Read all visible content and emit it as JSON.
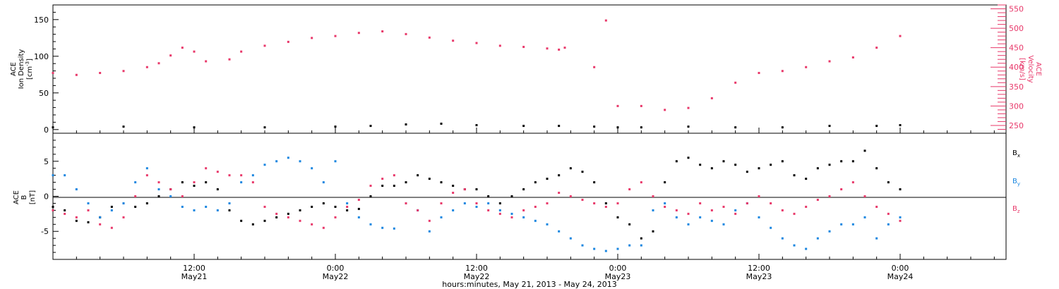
{
  "colors": {
    "black": "#000000",
    "blue": "#1a86e0",
    "pink": "#e8386a"
  },
  "x_axis": {
    "label": "hours:minutes, May 21, 2013 - May 24, 2013",
    "range_hours": [
      0,
      81
    ],
    "ticks": [
      {
        "hours": 12,
        "time": "12:00",
        "date": "May21"
      },
      {
        "hours": 24,
        "time": "0:00",
        "date": "May22"
      },
      {
        "hours": 36,
        "time": "12:00",
        "date": "May22"
      },
      {
        "hours": 48,
        "time": "0:00",
        "date": "May23"
      },
      {
        "hours": 60,
        "time": "12:00",
        "date": "May23"
      },
      {
        "hours": 72,
        "time": "0:00",
        "date": "May24"
      }
    ]
  },
  "chart_data": [
    {
      "type": "scatter",
      "panel": "top",
      "y_left": {
        "label_lines": [
          "ACE",
          "Ion Density"
        ],
        "unit_base": "[cm",
        "unit_exp": "-3",
        "unit_end": "]",
        "range": [
          -5,
          170
        ],
        "ticks": [
          0,
          50,
          100,
          150
        ]
      },
      "y_right": {
        "label_lines": [
          "ACE",
          "Velocity"
        ],
        "unit": "[km/s]",
        "range": [
          230,
          560
        ],
        "ticks": [
          250,
          300,
          350,
          400,
          450,
          500,
          550
        ]
      },
      "series": [
        {
          "color": "#000000",
          "axis": "left",
          "x": [
            0,
            6,
            12,
            18,
            24,
            27,
            30,
            33,
            36,
            40,
            43,
            46,
            48,
            50,
            54,
            58,
            62,
            66,
            70,
            72
          ],
          "y": [
            3,
            4,
            3,
            3,
            4,
            5,
            7,
            8,
            6,
            5,
            5,
            4,
            3,
            3,
            4,
            3,
            3,
            5,
            5,
            6
          ]
        },
        {
          "color": "#e8386a",
          "axis": "right",
          "x": [
            0,
            2,
            4,
            6,
            8,
            9,
            10,
            11,
            12,
            13,
            15,
            16,
            18,
            20,
            22,
            24,
            26,
            28,
            30,
            32,
            34,
            36,
            38,
            40,
            42,
            43,
            43.5,
            46,
            47,
            48,
            50,
            52,
            54,
            56,
            58,
            60,
            62,
            64,
            66,
            68,
            70,
            72
          ],
          "y": [
            385,
            380,
            385,
            390,
            400,
            410,
            430,
            450,
            440,
            415,
            420,
            440,
            455,
            465,
            475,
            480,
            488,
            492,
            485,
            476,
            468,
            462,
            455,
            452,
            448,
            445,
            450,
            400,
            520,
            300,
            300,
            290,
            295,
            320,
            360,
            385,
            390,
            400,
            415,
            425,
            450,
            480
          ]
        }
      ]
    },
    {
      "type": "scatter",
      "panel": "bottom",
      "y_left": {
        "label_lines": [
          "ACE",
          "B"
        ],
        "unit": "[nT]",
        "range": [
          -9,
          9
        ],
        "ticks": [
          -5,
          0,
          5
        ]
      },
      "legend": [
        {
          "base": "B",
          "sub": "x",
          "color": "#000000"
        },
        {
          "base": "B",
          "sub": "y",
          "color": "#1a86e0"
        },
        {
          "base": "B",
          "sub": "z",
          "color": "#e8386a"
        }
      ],
      "series": [
        {
          "color": "#000000",
          "x": [
            0,
            1,
            2,
            3,
            4,
            5,
            6,
            7,
            8,
            9,
            10,
            11,
            12,
            13,
            14,
            15,
            16,
            17,
            18,
            19,
            20,
            21,
            22,
            23,
            24,
            25,
            26,
            27,
            28,
            29,
            30,
            31,
            32,
            33,
            34,
            35,
            36,
            37,
            38,
            39,
            40,
            41,
            42,
            43,
            44,
            45,
            46,
            47,
            48,
            49,
            50,
            51,
            52,
            53,
            54,
            55,
            56,
            57,
            58,
            59,
            60,
            61,
            62,
            63,
            64,
            65,
            66,
            67,
            68,
            69,
            70,
            71,
            72
          ],
          "y": [
            -1.5,
            -2,
            -3.5,
            -3.7,
            -3,
            -1.5,
            -1,
            -1.5,
            -1,
            0,
            1,
            2,
            1.5,
            2,
            1,
            -2,
            -3.5,
            -4,
            -3.5,
            -3,
            -2.5,
            -2,
            -1.5,
            -1,
            -1.5,
            -2,
            -1.8,
            0,
            1.5,
            1.5,
            2,
            3,
            2.5,
            2,
            1.5,
            1,
            1,
            0,
            -1,
            0,
            1,
            2,
            2.5,
            3,
            4,
            3.5,
            2,
            -1,
            -3,
            -4,
            -6,
            -5,
            2,
            5,
            5.5,
            4.5,
            4,
            5,
            4.5,
            3.5,
            4,
            4.5,
            5,
            3,
            2.5,
            4,
            4.5,
            5,
            5,
            6.5,
            4,
            2,
            1
          ]
        },
        {
          "color": "#1a86e0",
          "x": [
            0,
            1,
            2,
            3,
            4,
            5,
            6,
            7,
            8,
            9,
            10,
            11,
            12,
            13,
            14,
            15,
            16,
            17,
            18,
            19,
            20,
            21,
            22,
            23,
            24,
            25,
            26,
            27,
            28,
            29,
            30,
            31,
            32,
            33,
            34,
            35,
            36,
            37,
            38,
            39,
            40,
            41,
            42,
            43,
            44,
            45,
            46,
            47,
            48,
            49,
            50,
            51,
            52,
            53,
            54,
            55,
            56,
            57,
            58,
            59,
            60,
            61,
            62,
            63,
            64,
            65,
            66,
            67,
            68,
            69,
            70,
            71,
            72
          ],
          "y": [
            3,
            3,
            1,
            -1,
            -3,
            -2,
            -1,
            2,
            4,
            1,
            0,
            -1.5,
            -2,
            -1.5,
            -2,
            -1,
            2,
            3,
            4.5,
            5,
            5.5,
            5,
            4,
            2,
            5,
            -1,
            -3,
            -4,
            -4.5,
            -4.6,
            -1,
            -2,
            -5,
            -3,
            -2,
            -1,
            -1.5,
            -1,
            -2,
            -2.5,
            -3,
            -3.5,
            -4,
            -5,
            -6,
            -7,
            -7.5,
            -7.8,
            -7.5,
            -7,
            -7,
            -2,
            -1,
            -3,
            -4,
            -3,
            -3.5,
            -4,
            -2,
            -1,
            -3,
            -4.5,
            -6,
            -7,
            -7.5,
            -6,
            -5,
            -4,
            -4,
            -3,
            -6,
            -4,
            -3
          ]
        },
        {
          "color": "#e8386a",
          "x": [
            0,
            1,
            2,
            3,
            4,
            5,
            6,
            7,
            8,
            9,
            10,
            11,
            12,
            13,
            14,
            15,
            16,
            17,
            18,
            19,
            20,
            21,
            22,
            23,
            24,
            25,
            26,
            27,
            28,
            29,
            30,
            31,
            32,
            33,
            34,
            35,
            36,
            37,
            38,
            39,
            40,
            41,
            42,
            43,
            44,
            45,
            46,
            47,
            48,
            49,
            50,
            51,
            52,
            53,
            54,
            55,
            56,
            57,
            58,
            59,
            60,
            61,
            62,
            63,
            64,
            65,
            66,
            67,
            68,
            69,
            70,
            71,
            72
          ],
          "y": [
            -2,
            -2.5,
            -3,
            -2,
            -4,
            -4.5,
            -3,
            0,
            3,
            2,
            1,
            0,
            2,
            4,
            3.5,
            3,
            3,
            2,
            -1.5,
            -2.5,
            -3,
            -3.5,
            -4,
            -4.5,
            -3,
            -1.5,
            -0.5,
            1.5,
            2.5,
            3,
            -1,
            -2,
            -3.5,
            -1,
            0.5,
            1,
            -1,
            -2,
            -2.5,
            -3,
            -2,
            -1.5,
            -1,
            0.5,
            0,
            -0.5,
            -1,
            -1.5,
            -1,
            1,
            2,
            0,
            -1.5,
            -2,
            -2.5,
            -1,
            -2,
            -1.5,
            -2.5,
            -1,
            0,
            -1,
            -2,
            -2.5,
            -1.5,
            -0.5,
            0,
            1,
            2,
            0,
            -1.5,
            -2.5,
            -3.5
          ]
        }
      ]
    }
  ]
}
